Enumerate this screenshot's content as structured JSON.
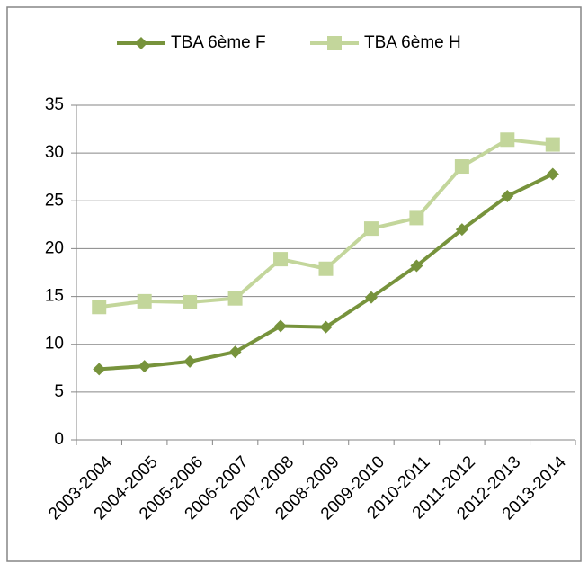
{
  "chart_data": {
    "type": "line",
    "categories": [
      "2003-2004",
      "2004-2005",
      "2005-2006",
      "2006-2007",
      "2007-2008",
      "2008-2009",
      "2009-2010",
      "2010-2011",
      "2011-2012",
      "2012-2013",
      "2013-2014"
    ],
    "series": [
      {
        "name": "TBA 6ème F",
        "color": "#77933c",
        "marker": "diamond",
        "values": [
          7.4,
          7.7,
          8.2,
          9.2,
          11.9,
          11.8,
          14.9,
          18.2,
          22.0,
          25.5,
          27.8
        ]
      },
      {
        "name": "TBA 6ème H",
        "color": "#c3d69b",
        "marker": "square",
        "values": [
          13.9,
          14.5,
          14.4,
          14.8,
          18.9,
          17.9,
          22.1,
          23.2,
          28.6,
          31.4,
          30.9
        ]
      }
    ],
    "ylim": [
      0,
      35
    ],
    "yticks": [
      0,
      5,
      10,
      15,
      20,
      25,
      30,
      35
    ],
    "grid": true,
    "legend": "top"
  }
}
